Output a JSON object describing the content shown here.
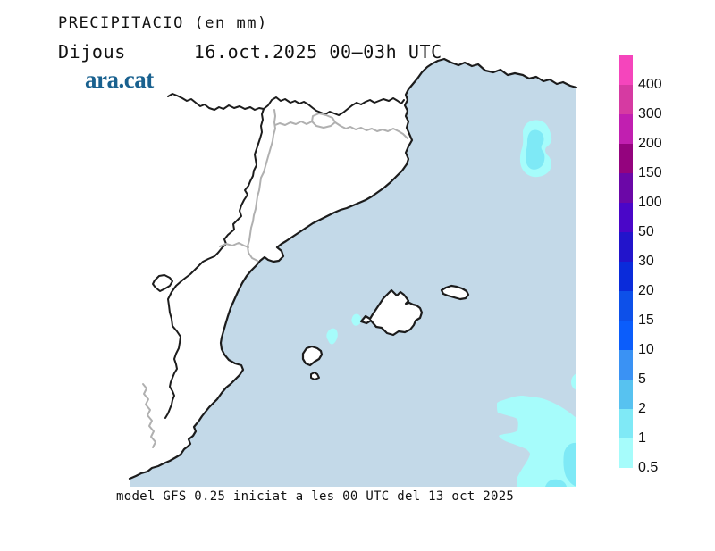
{
  "header": {
    "title": "PRECIPITACIO (en mm)",
    "subtitle": "Dijous      16.oct.2025 00–03h UTC",
    "brand": "ara.cat"
  },
  "footer": {
    "caption": "model GFS 0.25 iniciat a les 00 UTC del 13 oct 2025"
  },
  "legend": {
    "unit": "mm",
    "entries": [
      {
        "color": "#F545BC",
        "label": "400"
      },
      {
        "color": "#D63AA2",
        "label": "300"
      },
      {
        "color": "#C11FB0",
        "label": "200"
      },
      {
        "color": "#94037E",
        "label": "150"
      },
      {
        "color": "#6B07A7",
        "label": "100"
      },
      {
        "color": "#4A06C8",
        "label": "50"
      },
      {
        "color": "#2214CB",
        "label": "30"
      },
      {
        "color": "#0A2BDA",
        "label": "20"
      },
      {
        "color": "#0D50E9",
        "label": "15"
      },
      {
        "color": "#0B5DFB",
        "label": "10"
      },
      {
        "color": "#3A92F4",
        "label": "5"
      },
      {
        "color": "#57C2F0",
        "label": "2"
      },
      {
        "color": "#7FE9F6",
        "label": "1"
      },
      {
        "color": "#A6FCFB",
        "label": "0.5"
      }
    ]
  },
  "map": {
    "sea_color": "#C3D9E8",
    "land_color": "#FFFFFF",
    "coast_color": "#1C1C1C",
    "region_border_color": "#B0B0B0",
    "precip_light_color": "#A6FCFB",
    "precip_medium_color": "#7EE9F6",
    "brand_color": "#19618F"
  }
}
